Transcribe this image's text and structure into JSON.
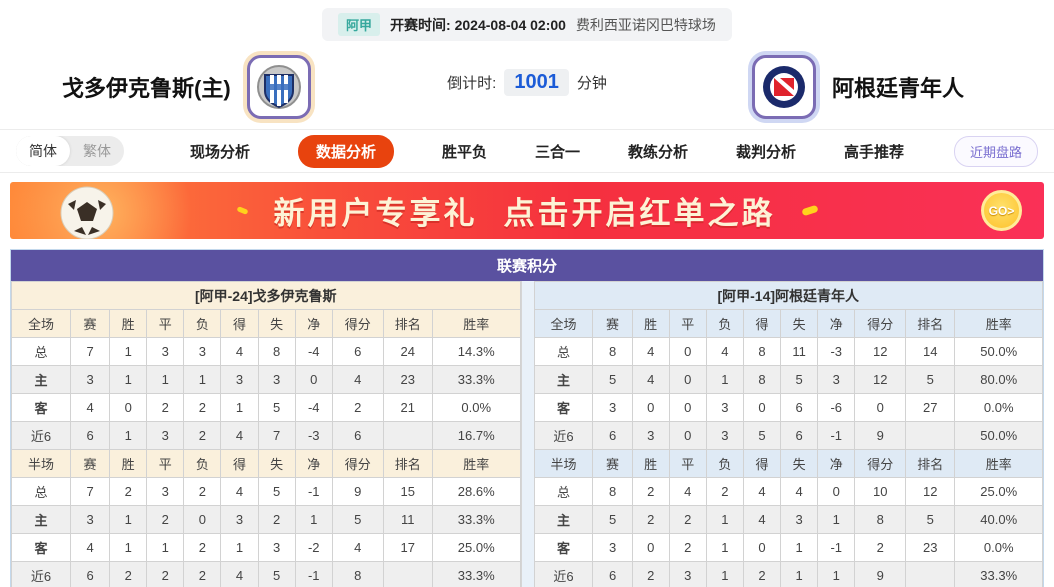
{
  "meta_bar": {
    "league_badge": "阿甲",
    "kickoff": "开赛时间:  2024-08-04 02:00",
    "venue": "费利西亚诺冈巴特球场"
  },
  "header": {
    "home_name": "戈多伊克鲁斯(主)",
    "away_name": "阿根廷青年人",
    "countdown_label": "倒计时:",
    "countdown_value": "1001",
    "countdown_unit": "分钟"
  },
  "lang_toggle": {
    "simplified": "简体",
    "traditional": "繁体"
  },
  "nav": {
    "items": [
      {
        "label": "现场分析",
        "active": false
      },
      {
        "label": "数据分析",
        "active": true
      },
      {
        "label": "胜平负",
        "active": false
      },
      {
        "label": "三合一",
        "active": false
      },
      {
        "label": "教练分析",
        "active": false
      },
      {
        "label": "裁判分析",
        "active": false
      },
      {
        "label": "高手推荐",
        "active": false
      }
    ],
    "recent_button": "近期盘路"
  },
  "banner": {
    "phrase1": "新用户专享礼",
    "phrase2": "点击开启红单之路",
    "go_label": "GO>"
  },
  "league_table": {
    "title": "联赛积分",
    "columns_full": [
      "全场",
      "赛",
      "胜",
      "平",
      "负",
      "得",
      "失",
      "净",
      "得分",
      "排名",
      "胜率"
    ],
    "columns_half": [
      "半场",
      "赛",
      "胜",
      "平",
      "负",
      "得",
      "失",
      "净",
      "得分",
      "排名",
      "胜率"
    ],
    "sides": [
      {
        "header": "[阿甲-24]戈多伊克鲁斯",
        "full_rows": [
          {
            "label": "总",
            "type": "total",
            "cells": [
              "7",
              "1",
              "3",
              "3",
              "4",
              "8",
              "-4",
              "6",
              "24",
              "14.3%"
            ]
          },
          {
            "label": "主",
            "type": "home",
            "cells": [
              "3",
              "1",
              "1",
              "1",
              "3",
              "3",
              "0",
              "4",
              "23",
              "33.3%"
            ]
          },
          {
            "label": "客",
            "type": "away",
            "cells": [
              "4",
              "0",
              "2",
              "2",
              "1",
              "5",
              "-4",
              "2",
              "21",
              "0.0%"
            ]
          },
          {
            "label": "近6",
            "type": "recent",
            "cells": [
              "6",
              "1",
              "3",
              "2",
              "4",
              "7",
              "-3",
              "6",
              "",
              "16.7%"
            ]
          }
        ],
        "half_rows": [
          {
            "label": "总",
            "type": "total",
            "cells": [
              "7",
              "2",
              "3",
              "2",
              "4",
              "5",
              "-1",
              "9",
              "15",
              "28.6%"
            ]
          },
          {
            "label": "主",
            "type": "home",
            "cells": [
              "3",
              "1",
              "2",
              "0",
              "3",
              "2",
              "1",
              "5",
              "11",
              "33.3%"
            ]
          },
          {
            "label": "客",
            "type": "away",
            "cells": [
              "4",
              "1",
              "1",
              "2",
              "1",
              "3",
              "-2",
              "4",
              "17",
              "25.0%"
            ]
          },
          {
            "label": "近6",
            "type": "recent",
            "cells": [
              "6",
              "2",
              "2",
              "2",
              "4",
              "5",
              "-1",
              "8",
              "",
              "33.3%"
            ]
          }
        ]
      },
      {
        "header": "[阿甲-14]阿根廷青年人",
        "full_rows": [
          {
            "label": "总",
            "type": "total",
            "cells": [
              "8",
              "4",
              "0",
              "4",
              "8",
              "11",
              "-3",
              "12",
              "14",
              "50.0%"
            ]
          },
          {
            "label": "主",
            "type": "home",
            "cells": [
              "5",
              "4",
              "0",
              "1",
              "8",
              "5",
              "3",
              "12",
              "5",
              "80.0%"
            ]
          },
          {
            "label": "客",
            "type": "away",
            "cells": [
              "3",
              "0",
              "0",
              "3",
              "0",
              "6",
              "-6",
              "0",
              "27",
              "0.0%"
            ]
          },
          {
            "label": "近6",
            "type": "recent",
            "cells": [
              "6",
              "3",
              "0",
              "3",
              "5",
              "6",
              "-1",
              "9",
              "",
              "50.0%"
            ]
          }
        ],
        "half_rows": [
          {
            "label": "总",
            "type": "total",
            "cells": [
              "8",
              "2",
              "4",
              "2",
              "4",
              "4",
              "0",
              "10",
              "12",
              "25.0%"
            ]
          },
          {
            "label": "主",
            "type": "home",
            "cells": [
              "5",
              "2",
              "2",
              "1",
              "4",
              "3",
              "1",
              "8",
              "5",
              "40.0%"
            ]
          },
          {
            "label": "客",
            "type": "away",
            "cells": [
              "3",
              "0",
              "2",
              "1",
              "0",
              "1",
              "-1",
              "2",
              "23",
              "0.0%"
            ]
          },
          {
            "label": "近6",
            "type": "recent",
            "cells": [
              "6",
              "2",
              "3",
              "1",
              "2",
              "1",
              "1",
              "9",
              "",
              "33.3%"
            ]
          }
        ]
      }
    ]
  },
  "colors": {
    "accent_nav_active": "#e8430e",
    "table_title_purple": "#5a51a0",
    "home_section_bg": "#faf0dc",
    "away_section_bg": "#dfeaf5",
    "home_row_red": "#d80000",
    "away_row_blue": "#0b0bd6",
    "countdown_blue": "#1b5bd7",
    "league_badge_teal": "#36a89d",
    "banner_gradient": [
      "#ff8a3a",
      "#f5303e",
      "#fa3057"
    ]
  }
}
